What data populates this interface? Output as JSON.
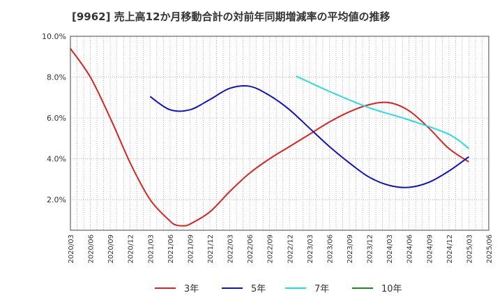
{
  "chart_data": {
    "type": "line",
    "title": "[9962]  売上高12か月移動合計の対前年同期増減率の平均値の推移",
    "xlabel": "",
    "ylabel": "",
    "ylim": [
      0.5,
      10.0
    ],
    "y_ticks": [
      "2.0%",
      "4.0%",
      "6.0%",
      "8.0%",
      "10.0%"
    ],
    "y_tick_values": [
      2.0,
      4.0,
      6.0,
      8.0,
      10.0
    ],
    "x_ticks": [
      "2020/03",
      "2020/06",
      "2020/09",
      "2020/12",
      "2021/03",
      "2021/06",
      "2021/09",
      "2021/12",
      "2022/03",
      "2022/06",
      "2022/09",
      "2022/12",
      "2023/03",
      "2023/06",
      "2023/09",
      "2023/12",
      "2024/03",
      "2024/06",
      "2024/09",
      "2024/12",
      "2025/03",
      "2025/06"
    ],
    "grid": true,
    "legend_position": "bottom",
    "series": [
      {
        "name": "3年",
        "color": "#dd2222",
        "points": [
          [
            "2020/03",
            9.4
          ],
          [
            "2020/06",
            8.0
          ],
          [
            "2020/09",
            6.0
          ],
          [
            "2020/12",
            3.8
          ],
          [
            "2021/03",
            2.0
          ],
          [
            "2021/06",
            0.95
          ],
          [
            "2021/07",
            0.75
          ],
          [
            "2021/08",
            0.72
          ],
          [
            "2021/09",
            0.8
          ],
          [
            "2021/12",
            1.4
          ],
          [
            "2022/03",
            2.4
          ],
          [
            "2022/06",
            3.3
          ],
          [
            "2022/09",
            4.0
          ],
          [
            "2022/12",
            4.6
          ],
          [
            "2023/03",
            5.2
          ],
          [
            "2023/06",
            5.8
          ],
          [
            "2023/09",
            6.3
          ],
          [
            "2023/12",
            6.65
          ],
          [
            "2024/03",
            6.75
          ],
          [
            "2024/06",
            6.35
          ],
          [
            "2024/09",
            5.5
          ],
          [
            "2024/12",
            4.5
          ],
          [
            "2025/03",
            3.85
          ]
        ]
      },
      {
        "name": "5年",
        "color": "#1111cc",
        "points": [
          [
            "2021/03",
            7.05
          ],
          [
            "2021/06",
            6.4
          ],
          [
            "2021/09",
            6.4
          ],
          [
            "2021/12",
            6.9
          ],
          [
            "2022/03",
            7.45
          ],
          [
            "2022/06",
            7.55
          ],
          [
            "2022/09",
            7.1
          ],
          [
            "2022/12",
            6.4
          ],
          [
            "2023/03",
            5.5
          ],
          [
            "2023/06",
            4.6
          ],
          [
            "2023/09",
            3.8
          ],
          [
            "2023/12",
            3.1
          ],
          [
            "2024/03",
            2.7
          ],
          [
            "2024/06",
            2.6
          ],
          [
            "2024/09",
            2.85
          ],
          [
            "2024/12",
            3.4
          ],
          [
            "2025/03",
            4.1
          ]
        ]
      },
      {
        "name": "7年",
        "color": "#22dddd",
        "points": [
          [
            "2023/01",
            8.05
          ],
          [
            "2023/06",
            7.3
          ],
          [
            "2023/12",
            6.5
          ],
          [
            "2024/06",
            5.9
          ],
          [
            "2024/12",
            5.2
          ],
          [
            "2025/03",
            4.5
          ]
        ]
      },
      {
        "name": "10年",
        "color": "#228822",
        "points": []
      }
    ]
  }
}
